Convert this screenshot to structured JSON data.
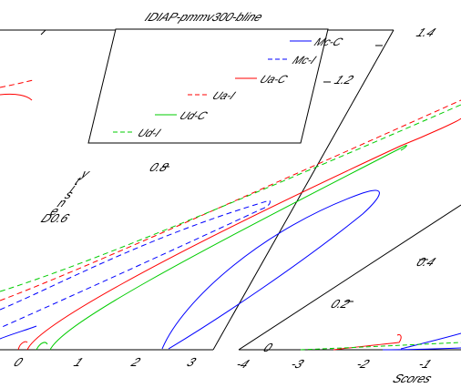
{
  "chart_data": [
    {
      "type": "line",
      "title": "IDIAP-pmmv300-bline",
      "xlabel": "",
      "ylabel": "",
      "grid": false,
      "legend_position": "top-right",
      "y_ticks": [
        "0.6",
        "0.8",
        "1",
        "1.2",
        "1.4"
      ],
      "x_ticks": [
        "0",
        "1",
        "2",
        "3"
      ],
      "ylabel_fragments": [
        "D",
        "e",
        "n",
        "s",
        "i",
        "t",
        "y"
      ],
      "series": [
        {
          "name": "Mc-C",
          "color": "#0000ff",
          "dash": "solid"
        },
        {
          "name": "Mc-I",
          "color": "#0000ff",
          "dash": "dashed"
        },
        {
          "name": "Ua-C",
          "color": "#ff0000",
          "dash": "solid"
        },
        {
          "name": "Ua-I",
          "color": "#ff0000",
          "dash": "dashed"
        },
        {
          "name": "Ud-C",
          "color": "#00cc00",
          "dash": "solid"
        },
        {
          "name": "Ud-I",
          "color": "#00cc00",
          "dash": "dashed"
        }
      ]
    },
    {
      "type": "line",
      "title": "",
      "xlabel": "Scores",
      "ylabel": "",
      "x_ticks": [
        "-4",
        "-3",
        "-2",
        "-1"
      ],
      "y_ticks": [
        "0",
        "0.2",
        "0.4"
      ],
      "series": [
        {
          "color": "#0000ff",
          "dash": "solid"
        },
        {
          "color": "#ff0000",
          "dash": "solid"
        },
        {
          "color": "#00cc00",
          "dash": "dashed"
        }
      ]
    }
  ]
}
